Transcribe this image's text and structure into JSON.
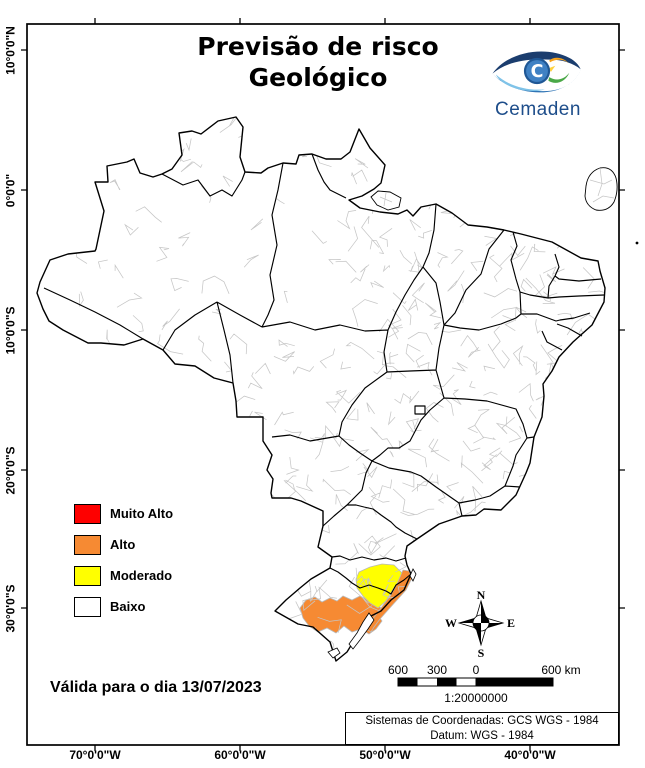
{
  "title": {
    "line1": "Previsão de risco",
    "line2": "Geológico"
  },
  "logo": {
    "name": "Cemaden",
    "monogram": "C"
  },
  "legend": {
    "items": [
      {
        "label": "Muito Alto",
        "color": "#FE0000"
      },
      {
        "label": "Alto",
        "color": "#F68A33"
      },
      {
        "label": "Moderado",
        "color": "#FFFF00"
      },
      {
        "label": "Baixo",
        "color": "#FFFFFF"
      }
    ]
  },
  "validity_text": "Válida para o dia 13/07/2023",
  "scale_bar": {
    "tick_labels": [
      "600",
      "300",
      "0",
      "600 km"
    ],
    "ratio": "1:20000000"
  },
  "compass": {
    "north": "N",
    "south": "S",
    "east": "E",
    "west": "W"
  },
  "coordinate_info": {
    "line1": "Sistemas de Coordenadas: GCS WGS - 1984",
    "line2": "Datum: WGS - 1984"
  },
  "axes": {
    "longitude_labels": [
      "70°0'0\"W",
      "60°0'0\"W",
      "50°0'0\"W",
      "40°0'0\"W"
    ],
    "latitude_labels": [
      "10°0'0\"N",
      "0°0'0\"",
      "10°0'0\"S",
      "20°0'0\"S",
      "30°0'0\"S"
    ]
  },
  "map_colors": {
    "muito_alto": "#FE0000",
    "alto": "#F68A33",
    "moderado": "#FFFF00",
    "baixo": "#FFFFFF"
  }
}
